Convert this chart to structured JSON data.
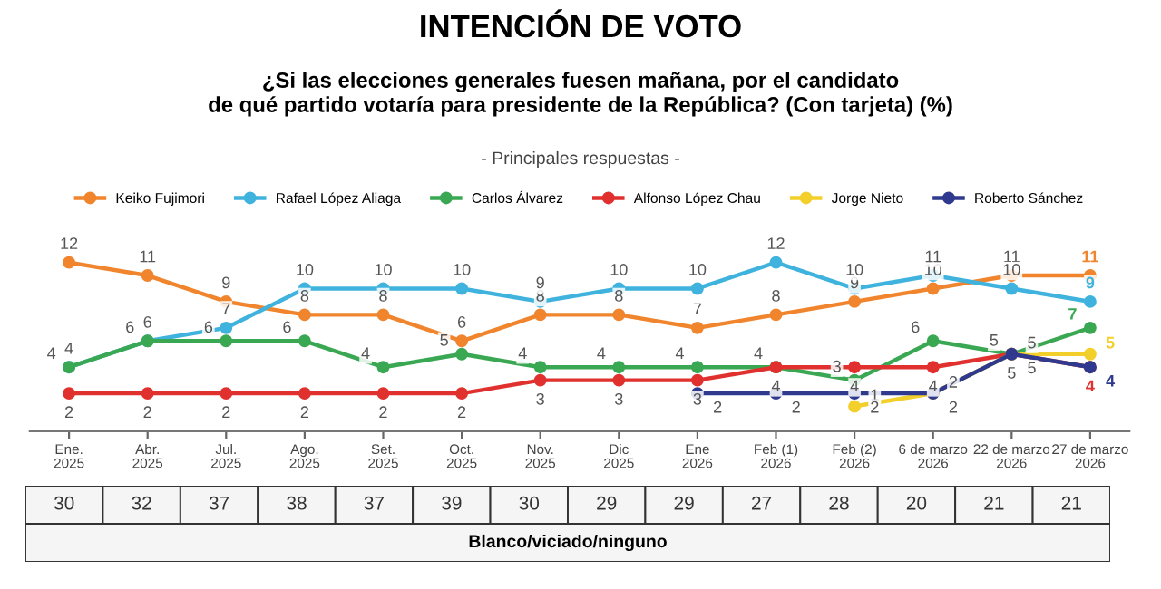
{
  "chart_data": [
    {
      "type": "line",
      "title": "INTENCIÓN DE VOTO",
      "subtitle": "¿Si las elecciones generales fuesen mañana, por el candidato\nde qué partido votaría para presidente de la República? (Con tarjeta) (%)",
      "annotations": [
        "- Principales respuestas -"
      ],
      "categories": [
        "Ene.\n2025",
        "Abr.\n2025",
        "Jul.\n2025",
        "Ago.\n2025",
        "Set.\n2025",
        "Oct.\n2025",
        "Nov.\n2025",
        "Dic\n2025",
        "Ene\n2026",
        "Feb (1)\n2026",
        "Feb (2)\n2026",
        "6 de marzo\n2026",
        "22 de marzo\n2026",
        "27 de marzo\n2026"
      ],
      "series": [
        {
          "name": "Keiko Fujimori",
          "color": "#f0852d",
          "values": [
            12,
            11,
            9,
            8,
            8,
            6,
            8,
            8,
            7,
            8,
            9,
            10,
            11,
            11
          ]
        },
        {
          "name": "Rafael López Aliaga",
          "color": "#3fb3de",
          "values": [
            4,
            6,
            7,
            10,
            10,
            10,
            9,
            10,
            10,
            12,
            10,
            11,
            10,
            9
          ]
        },
        {
          "name": "Carlos Álvarez",
          "color": "#3aa853",
          "values": [
            4,
            6,
            6,
            6,
            4,
            5,
            4,
            4,
            4,
            4,
            3,
            6,
            5,
            7
          ]
        },
        {
          "name": "Alfonso López Chau",
          "color": "#e0312f",
          "values": [
            2,
            2,
            2,
            2,
            2,
            2,
            3,
            3,
            3,
            4,
            4,
            4,
            5,
            4
          ]
        },
        {
          "name": "Jorge Nieto",
          "color": "#f2cf2a",
          "values": [
            null,
            null,
            null,
            null,
            null,
            null,
            null,
            null,
            null,
            null,
            1,
            2,
            5,
            5
          ]
        },
        {
          "name": "Roberto Sánchez",
          "color": "#2f3a8f",
          "values": [
            null,
            null,
            null,
            null,
            null,
            null,
            null,
            null,
            2,
            2,
            2,
            2,
            5,
            4
          ]
        }
      ],
      "data_labels": true,
      "marker": "circle",
      "line_style": "solid",
      "legend": "top",
      "grid": false
    },
    {
      "type": "other",
      "title": "Blanco/viciado/ninguno",
      "data_labels": true,
      "values": [
        30,
        32,
        37,
        38,
        37,
        39,
        30,
        29,
        29,
        27,
        28,
        20,
        21,
        21
      ]
    }
  ]
}
